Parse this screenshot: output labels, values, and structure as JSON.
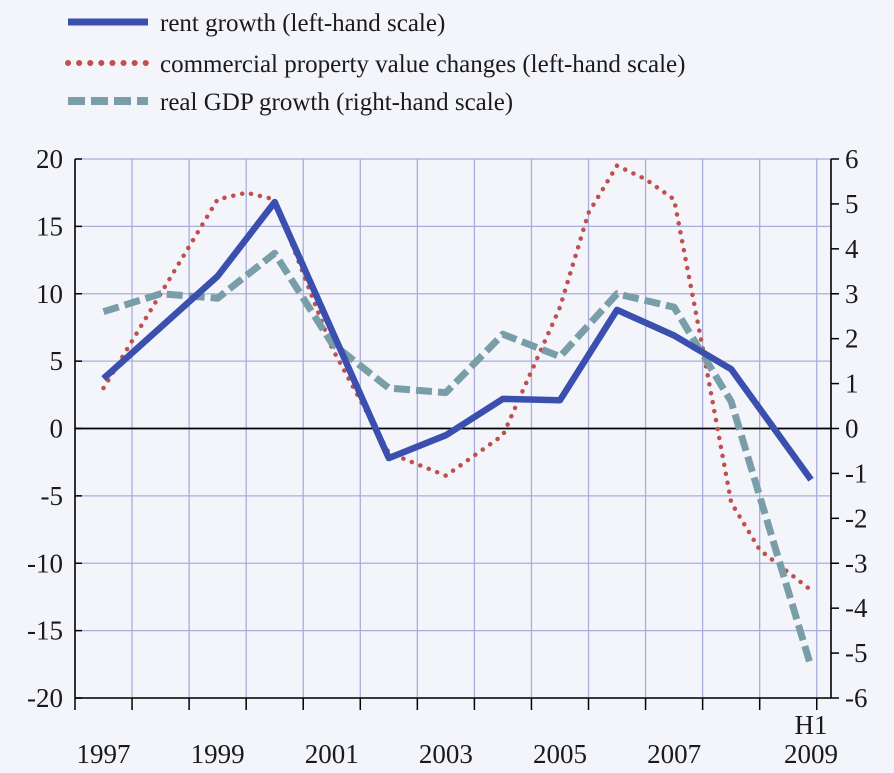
{
  "chart_data": {
    "type": "line",
    "x_tick_labels": [
      "1997",
      "1999",
      "2001",
      "2003",
      "2005",
      "2007",
      "2009"
    ],
    "x_sublabel": "H1",
    "x": [
      "1997",
      "1998",
      "1999",
      "2000",
      "2001",
      "2002",
      "2003",
      "2004",
      "2005",
      "2006",
      "2007",
      "2008",
      "2009 H1"
    ],
    "left_axis": {
      "ylim": [
        -20,
        20
      ],
      "ticks": [
        "20",
        "15",
        "10",
        "5",
        "0",
        "-5",
        "-10",
        "-15",
        "-20"
      ]
    },
    "right_axis": {
      "ylim": [
        -6,
        6
      ],
      "ticks": [
        "6",
        "5",
        "4",
        "3",
        "2",
        "1",
        "0",
        "-1",
        "-2",
        "-3",
        "-4",
        "-5",
        "-6"
      ]
    },
    "grid": true,
    "legend_position": "top-left",
    "series": [
      {
        "name": "rent growth (left-hand scale)",
        "axis": "left",
        "style": "solid",
        "color": "#3a4fae",
        "x": [
          1997,
          1999,
          2000,
          2002,
          2003,
          2004,
          2005,
          2006,
          2007,
          2008,
          2009.4
        ],
        "values": [
          3.7,
          11.3,
          16.8,
          -2.2,
          -0.5,
          2.2,
          2.1,
          8.8,
          6.9,
          4.4,
          -3.8
        ]
      },
      {
        "name": "commercial property value changes (left-hand scale)",
        "axis": "left",
        "style": "dotted",
        "color": "#c0504d",
        "x": [
          1997,
          1998,
          1999,
          1999.5,
          2000,
          2001,
          2002,
          2003,
          2004,
          2005,
          2005.5,
          2006,
          2006.5,
          2007,
          2007.5,
          2008,
          2008.5,
          2009.4
        ],
        "values": [
          3.0,
          10.0,
          17.0,
          17.5,
          17.0,
          6.0,
          -1.8,
          -3.5,
          -0.5,
          9.0,
          16.0,
          19.5,
          18.5,
          17.0,
          6.0,
          -5.5,
          -9.0,
          -12.0
        ]
      },
      {
        "name": "real GDP growth (right-hand scale)",
        "axis": "right",
        "style": "dashed",
        "color": "#7a9ea8",
        "x": [
          1997,
          1998,
          1999,
          2000,
          2001,
          2002,
          2003,
          2004,
          2005,
          2006,
          2007,
          2008,
          2009.4
        ],
        "values": [
          2.6,
          3.0,
          2.9,
          3.9,
          1.9,
          0.9,
          0.8,
          2.1,
          1.6,
          3.0,
          2.7,
          0.6,
          -5.3
        ]
      }
    ]
  }
}
